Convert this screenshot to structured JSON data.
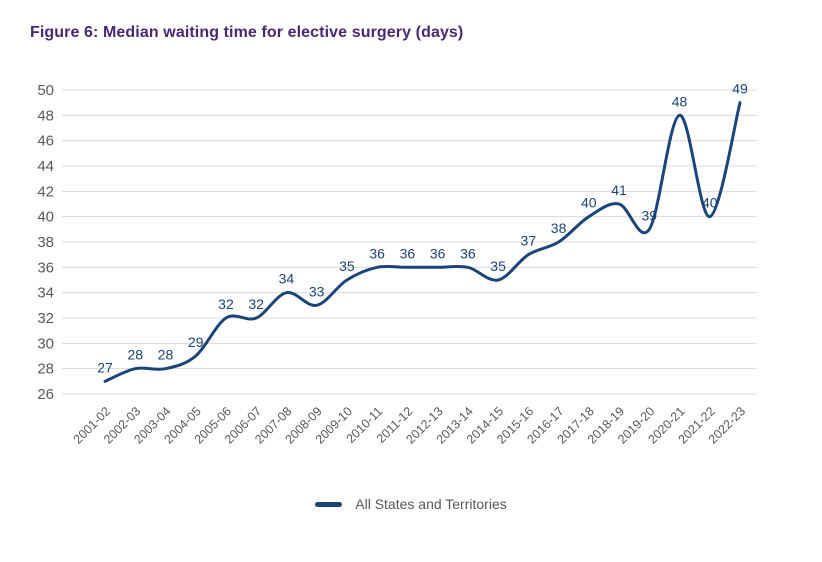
{
  "page": {
    "title": "Figure 6: Median waiting time for elective surgery (days)"
  },
  "colors": {
    "title": "#452a74",
    "line": "#1b4477",
    "grid": "#d9d9d9",
    "axis_text": "#595959",
    "data_label_text": "#1b4477",
    "legend_text": "#58595b",
    "background": "#ffffff"
  },
  "legend": {
    "label": "All States and Territories"
  },
  "chart_data": {
    "type": "line",
    "title": "Figure 6: Median waiting time for elective surgery (days)",
    "categories": [
      "2001-02",
      "2002-03",
      "2003-04",
      "2004-05",
      "2005-06",
      "2006-07",
      "2007-08",
      "2008-09",
      "2009-10",
      "2010-11",
      "2011-12",
      "2012-13",
      "2013-14",
      "2014-15",
      "2015-16",
      "2016-17",
      "2017-18",
      "2018-19",
      "2019-20",
      "2020-21",
      "2021-22",
      "2022-23"
    ],
    "series": [
      {
        "name": "All States and Territories",
        "values": [
          27,
          28,
          28,
          29,
          32,
          32,
          34,
          33,
          35,
          36,
          36,
          36,
          36,
          35,
          37,
          38,
          40,
          41,
          39,
          48,
          40,
          49
        ]
      }
    ],
    "xlabel": "",
    "ylabel": "",
    "ylim": [
      26,
      50
    ],
    "ytick_step": 2,
    "grid": true,
    "smooth": true,
    "data_labels": true,
    "legend_position": "bottom"
  }
}
